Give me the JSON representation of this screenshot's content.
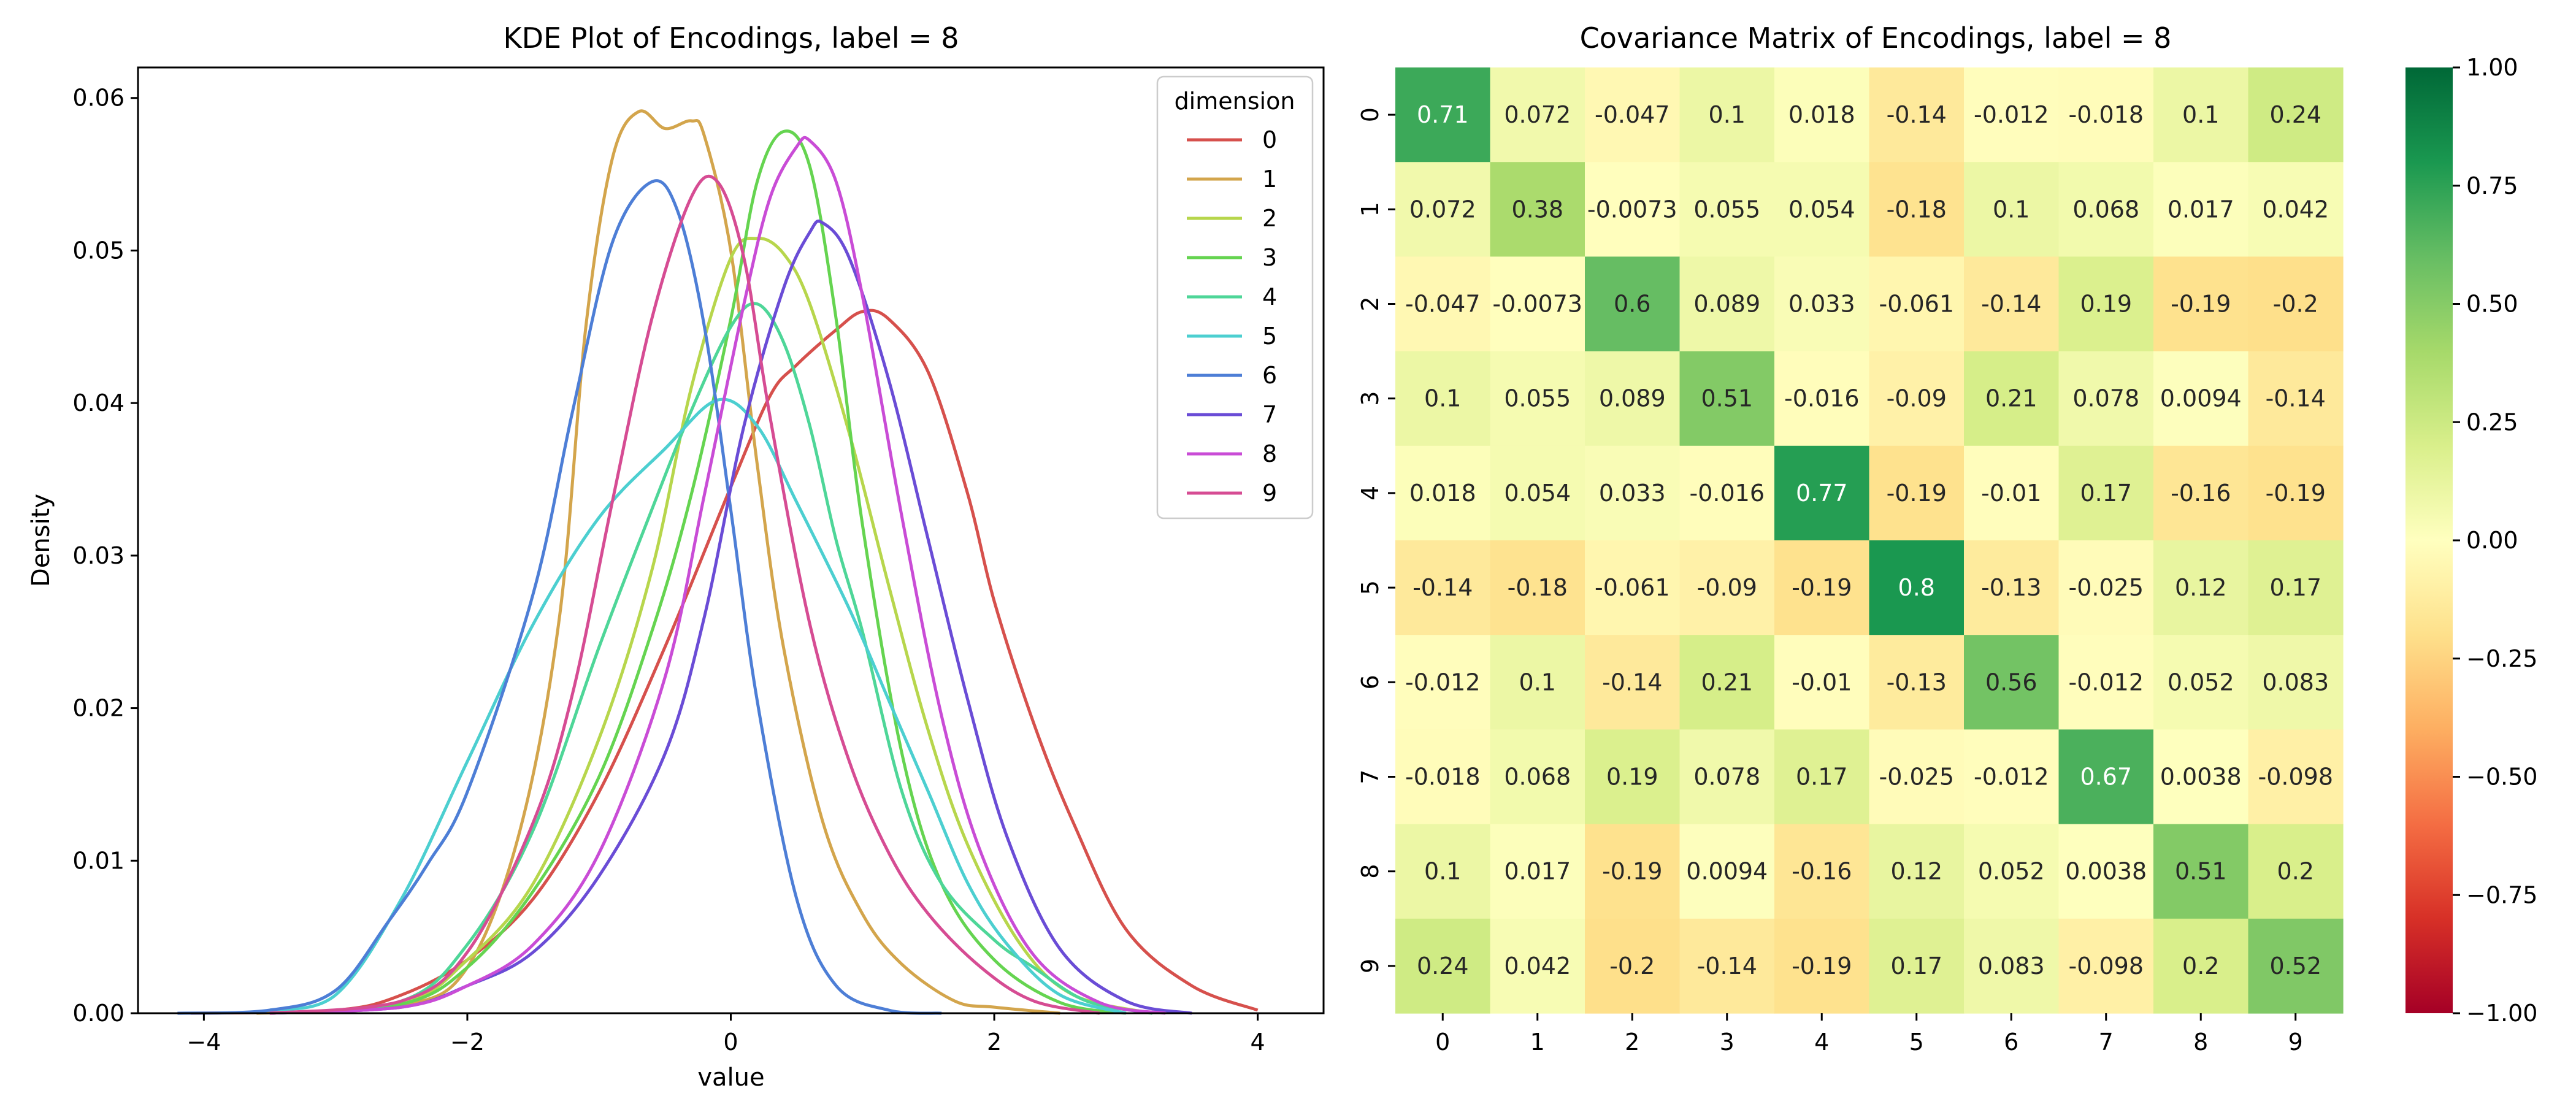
{
  "chart_data": [
    {
      "type": "line",
      "subtype": "kde",
      "title": "KDE Plot of Encodings, label = 8",
      "xlabel": "value",
      "ylabel": "Density",
      "xlim": [
        -4.5,
        4.5
      ],
      "ylim": [
        0,
        0.062
      ],
      "xticks": [
        -4,
        -2,
        0,
        2,
        4
      ],
      "yticks": [
        0.0,
        0.01,
        0.02,
        0.03,
        0.04,
        0.05,
        0.06
      ],
      "xtick_labels": [
        "−4",
        "−2",
        "0",
        "2",
        "4"
      ],
      "ytick_labels": [
        "0.00",
        "0.01",
        "0.02",
        "0.03",
        "0.04",
        "0.05",
        "0.06"
      ],
      "grid": false,
      "legend": {
        "title": "dimension",
        "placement": "top-right"
      },
      "series": [
        {
          "name": "0",
          "color": "#d6504c",
          "x": [
            -4.1,
            -3.0,
            -2.5,
            -2.0,
            -1.5,
            -1.0,
            -0.5,
            0.0,
            0.3,
            0.5,
            0.8,
            1.0,
            1.2,
            1.5,
            1.8,
            2.0,
            2.3,
            2.6,
            3.0,
            3.5,
            4.0
          ],
          "y": [
            0,
            0.0002,
            0.0012,
            0.0035,
            0.0075,
            0.0145,
            0.024,
            0.0345,
            0.0405,
            0.0425,
            0.0448,
            0.046,
            0.0455,
            0.042,
            0.034,
            0.027,
            0.019,
            0.0125,
            0.0055,
            0.0018,
            0.0002
          ]
        },
        {
          "name": "1",
          "color": "#d3a54c",
          "x": [
            -3.6,
            -2.5,
            -2.0,
            -1.6,
            -1.3,
            -1.1,
            -0.9,
            -0.7,
            -0.5,
            -0.3,
            -0.2,
            0.0,
            0.2,
            0.4,
            0.7,
            1.0,
            1.3,
            1.7,
            2.0,
            2.5
          ],
          "y": [
            0,
            0.0005,
            0.003,
            0.012,
            0.026,
            0.045,
            0.056,
            0.0591,
            0.058,
            0.0585,
            0.0575,
            0.05,
            0.036,
            0.024,
            0.0125,
            0.0065,
            0.0032,
            0.0008,
            0.0004,
            0
          ]
        },
        {
          "name": "2",
          "color": "#b7d64c",
          "x": [
            -3.5,
            -2.5,
            -2.0,
            -1.5,
            -1.0,
            -0.6,
            -0.3,
            0.0,
            0.2,
            0.4,
            0.6,
            0.9,
            1.2,
            1.5,
            1.8,
            2.2,
            2.6,
            3.2
          ],
          "y": [
            0,
            0.0006,
            0.0035,
            0.0085,
            0.018,
            0.029,
            0.041,
            0.0495,
            0.0508,
            0.0498,
            0.0465,
            0.038,
            0.028,
            0.0185,
            0.011,
            0.0045,
            0.0012,
            0
          ]
        },
        {
          "name": "3",
          "color": "#65d450",
          "x": [
            -3.5,
            -2.5,
            -2.0,
            -1.5,
            -1.0,
            -0.6,
            -0.3,
            0.0,
            0.2,
            0.4,
            0.6,
            0.8,
            1.0,
            1.3,
            1.6,
            2.0,
            2.5,
            3.0
          ],
          "y": [
            0,
            0.0006,
            0.003,
            0.008,
            0.0155,
            0.025,
            0.034,
            0.0455,
            0.0545,
            0.0578,
            0.0555,
            0.0455,
            0.032,
            0.017,
            0.0085,
            0.0035,
            0.0007,
            0
          ]
        },
        {
          "name": "4",
          "color": "#4ed698",
          "x": [
            -3.5,
            -2.5,
            -2.0,
            -1.5,
            -1.0,
            -0.6,
            -0.3,
            0.0,
            0.2,
            0.4,
            0.6,
            0.8,
            1.0,
            1.3,
            1.6,
            2.0,
            2.3,
            2.7,
            3.2
          ],
          "y": [
            0,
            0.0008,
            0.0045,
            0.012,
            0.024,
            0.033,
            0.0395,
            0.045,
            0.0465,
            0.044,
            0.0385,
            0.031,
            0.025,
            0.0145,
            0.0085,
            0.0048,
            0.003,
            0.0008,
            0
          ]
        },
        {
          "name": "5",
          "color": "#4ccfd0",
          "x": [
            -3.5,
            -3.0,
            -2.5,
            -2.0,
            -1.5,
            -1.0,
            -0.5,
            -0.1,
            0.2,
            0.5,
            0.9,
            1.2,
            1.5,
            1.8,
            2.1,
            2.5,
            3.0
          ],
          "y": [
            0.0002,
            0.0012,
            0.0075,
            0.0165,
            0.0255,
            0.0325,
            0.037,
            0.0402,
            0.0385,
            0.0335,
            0.0265,
            0.0205,
            0.0145,
            0.0085,
            0.0045,
            0.0012,
            0
          ]
        },
        {
          "name": "6",
          "color": "#4d7ed6",
          "x": [
            -4.2,
            -3.5,
            -3.0,
            -2.6,
            -2.3,
            -2.0,
            -1.5,
            -1.2,
            -0.9,
            -0.6,
            -0.4,
            -0.2,
            0.0,
            0.2,
            0.5,
            0.8,
            1.2,
            1.6
          ],
          "y": [
            0,
            0.0002,
            0.0015,
            0.006,
            0.0098,
            0.0145,
            0.0275,
            0.0395,
            0.0505,
            0.0545,
            0.0525,
            0.045,
            0.033,
            0.0205,
            0.0075,
            0.0018,
            0.0002,
            0
          ]
        },
        {
          "name": "7",
          "color": "#6a4cd6",
          "x": [
            -3.5,
            -2.5,
            -2.0,
            -1.5,
            -1.0,
            -0.5,
            -0.2,
            0.1,
            0.4,
            0.6,
            0.7,
            0.9,
            1.2,
            1.5,
            1.8,
            2.1,
            2.5,
            3.0,
            3.5
          ],
          "y": [
            0,
            0.0004,
            0.0018,
            0.004,
            0.009,
            0.017,
            0.026,
            0.0385,
            0.0475,
            0.0512,
            0.0518,
            0.0495,
            0.0415,
            0.031,
            0.0205,
            0.0115,
            0.0042,
            0.0008,
            0
          ]
        },
        {
          "name": "8",
          "color": "#c94cd6",
          "x": [
            -3.5,
            -2.5,
            -2.0,
            -1.5,
            -1.0,
            -0.5,
            -0.2,
            0.1,
            0.3,
            0.5,
            0.6,
            0.8,
            1.0,
            1.3,
            1.6,
            1.9,
            2.3,
            2.8,
            3.3
          ],
          "y": [
            0,
            0.0004,
            0.0018,
            0.0045,
            0.0105,
            0.022,
            0.034,
            0.0465,
            0.0535,
            0.0568,
            0.0572,
            0.0545,
            0.047,
            0.0325,
            0.0195,
            0.0105,
            0.0038,
            0.0007,
            0
          ]
        },
        {
          "name": "9",
          "color": "#d64c93",
          "x": [
            -3.5,
            -2.5,
            -2.0,
            -1.5,
            -1.2,
            -0.9,
            -0.6,
            -0.3,
            -0.1,
            0.1,
            0.3,
            0.6,
            0.9,
            1.2,
            1.5,
            1.9,
            2.3,
            2.8
          ],
          "y": [
            0,
            0.0008,
            0.004,
            0.0125,
            0.021,
            0.0335,
            0.0455,
            0.0535,
            0.0545,
            0.0495,
            0.039,
            0.0255,
            0.0165,
            0.0105,
            0.0065,
            0.003,
            0.0008,
            0
          ]
        }
      ]
    },
    {
      "type": "heatmap",
      "title": "Covariance Matrix of Encodings, label = 8",
      "x_categories": [
        "0",
        "1",
        "2",
        "3",
        "4",
        "5",
        "6",
        "7",
        "8",
        "9"
      ],
      "y_categories": [
        "0",
        "1",
        "2",
        "3",
        "4",
        "5",
        "6",
        "7",
        "8",
        "9"
      ],
      "values": [
        [
          0.71,
          0.072,
          -0.047,
          0.1,
          0.018,
          -0.14,
          -0.012,
          -0.018,
          0.1,
          0.24
        ],
        [
          0.072,
          0.38,
          -0.0073,
          0.055,
          0.054,
          -0.18,
          0.1,
          0.068,
          0.017,
          0.042
        ],
        [
          -0.047,
          -0.0073,
          0.6,
          0.089,
          0.033,
          -0.061,
          -0.14,
          0.19,
          -0.19,
          -0.2
        ],
        [
          0.1,
          0.055,
          0.089,
          0.51,
          -0.016,
          -0.09,
          0.21,
          0.078,
          0.0094,
          -0.14
        ],
        [
          0.018,
          0.054,
          0.033,
          -0.016,
          0.77,
          -0.19,
          -0.01,
          0.17,
          -0.16,
          -0.19
        ],
        [
          -0.14,
          -0.18,
          -0.061,
          -0.09,
          -0.19,
          0.8,
          -0.13,
          -0.025,
          0.12,
          0.17
        ],
        [
          -0.012,
          0.1,
          -0.14,
          0.21,
          -0.01,
          -0.13,
          0.56,
          -0.012,
          0.052,
          0.083
        ],
        [
          -0.018,
          0.068,
          0.19,
          0.078,
          0.17,
          -0.025,
          -0.012,
          0.67,
          0.0038,
          -0.098
        ],
        [
          0.1,
          0.017,
          -0.19,
          0.0094,
          -0.16,
          0.12,
          0.052,
          0.0038,
          0.51,
          0.2
        ],
        [
          0.24,
          0.042,
          -0.2,
          -0.14,
          -0.19,
          0.17,
          0.083,
          -0.098,
          0.2,
          0.52
        ]
      ],
      "cell_labels": [
        [
          "0.71",
          "0.072",
          "-0.047",
          "0.1",
          "0.018",
          "-0.14",
          "-0.012",
          "-0.018",
          "0.1",
          "0.24"
        ],
        [
          "0.072",
          "0.38",
          "-0.0073",
          "0.055",
          "0.054",
          "-0.18",
          "0.1",
          "0.068",
          "0.017",
          "0.042"
        ],
        [
          "-0.047",
          "-0.0073",
          "0.6",
          "0.089",
          "0.033",
          "-0.061",
          "-0.14",
          "0.19",
          "-0.19",
          "-0.2"
        ],
        [
          "0.1",
          "0.055",
          "0.089",
          "0.51",
          "-0.016",
          "-0.09",
          "0.21",
          "0.078",
          "0.0094",
          "-0.14"
        ],
        [
          "0.018",
          "0.054",
          "0.033",
          "-0.016",
          "0.77",
          "-0.19",
          "-0.01",
          "0.17",
          "-0.16",
          "-0.19"
        ],
        [
          "-0.14",
          "-0.18",
          "-0.061",
          "-0.09",
          "-0.19",
          "0.8",
          "-0.13",
          "-0.025",
          "0.12",
          "0.17"
        ],
        [
          "-0.012",
          "0.1",
          "-0.14",
          "0.21",
          "-0.01",
          "-0.13",
          "0.56",
          "-0.012",
          "0.052",
          "0.083"
        ],
        [
          "-0.018",
          "0.068",
          "0.19",
          "0.078",
          "0.17",
          "-0.025",
          "-0.012",
          "0.67",
          "0.0038",
          "-0.098"
        ],
        [
          "0.1",
          "0.017",
          "-0.19",
          "0.0094",
          "-0.16",
          "0.12",
          "0.052",
          "0.0038",
          "0.51",
          "0.2"
        ],
        [
          "0.24",
          "0.042",
          "-0.2",
          "-0.14",
          "-0.19",
          "0.17",
          "0.083",
          "-0.098",
          "0.2",
          "0.52"
        ]
      ],
      "colormap": "RdYlGn",
      "vmin": -1.0,
      "vmax": 1.0,
      "colorbar_ticks": [
        1.0,
        0.75,
        0.5,
        0.25,
        0.0,
        -0.25,
        -0.5,
        -0.75,
        -1.0
      ],
      "colorbar_tick_labels": [
        "1.00",
        "0.75",
        "0.50",
        "0.25",
        "0.00",
        "−0.25",
        "−0.50",
        "−0.75",
        "−1.00"
      ]
    }
  ]
}
